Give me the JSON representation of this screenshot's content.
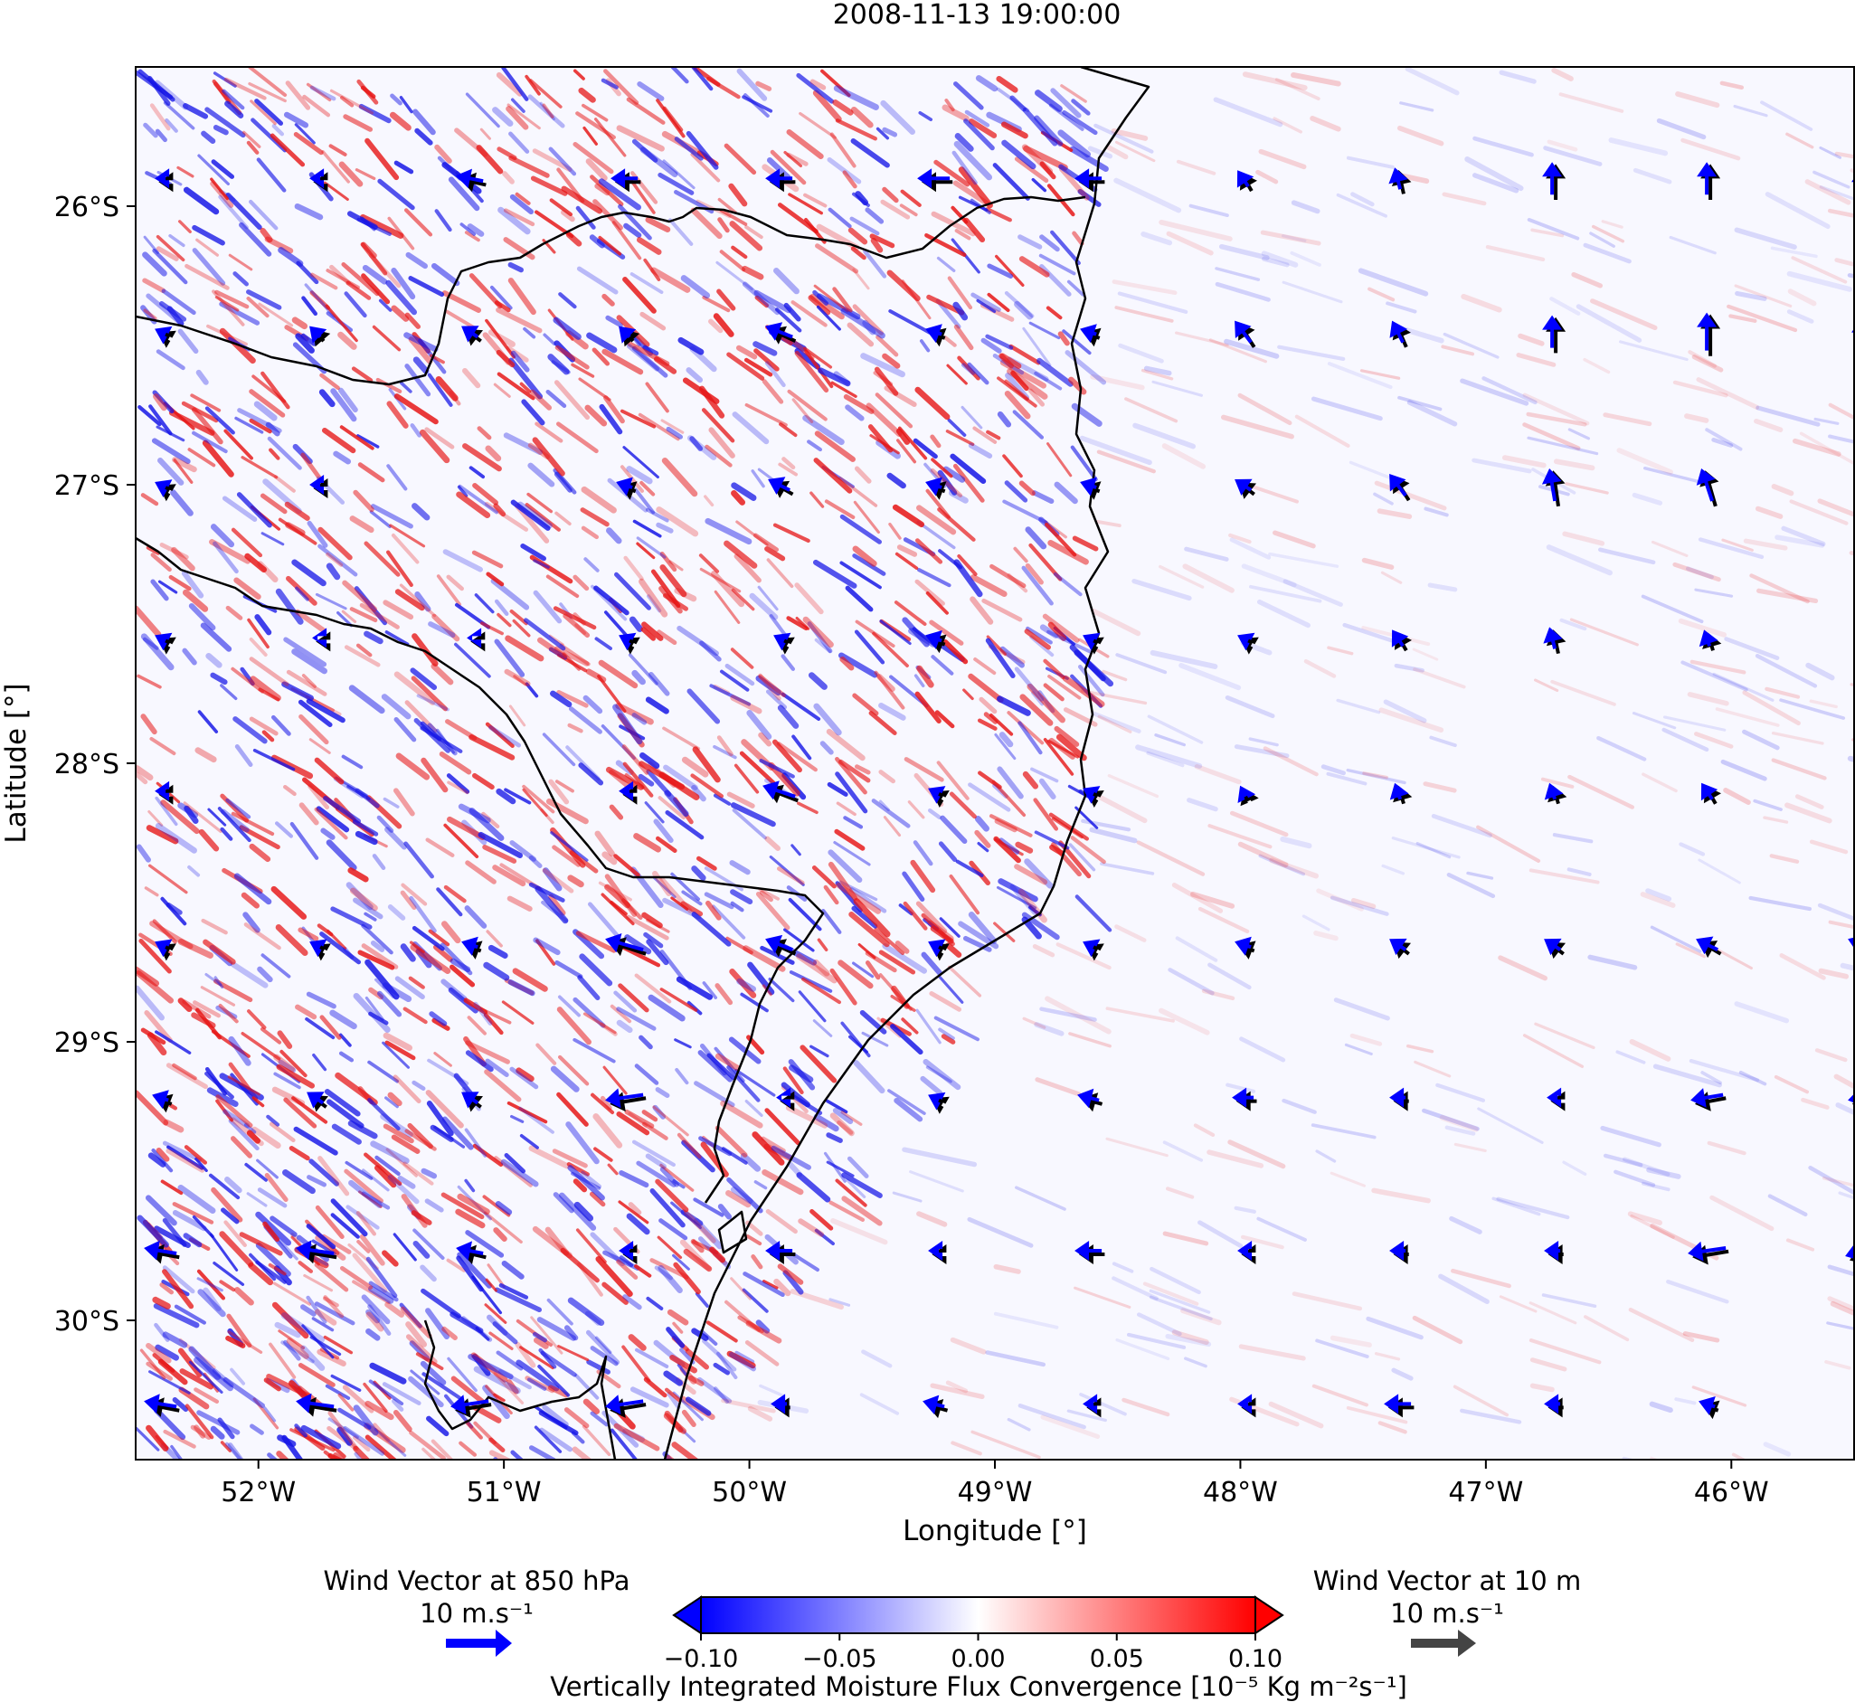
{
  "chart_data": {
    "type": "heatmap",
    "title": "2008-11-13 19:00:00",
    "xlabel": "Longitude [°]",
    "ylabel": "Latitude [°]",
    "xlim": [
      -52.5,
      -45.5
    ],
    "ylim": [
      -30.5,
      -25.5
    ],
    "x_ticks": [
      {
        "value": -52,
        "label": "52°W"
      },
      {
        "value": -51,
        "label": "51°W"
      },
      {
        "value": -50,
        "label": "50°W"
      },
      {
        "value": -49,
        "label": "49°W"
      },
      {
        "value": -48,
        "label": "48°W"
      },
      {
        "value": -47,
        "label": "47°W"
      },
      {
        "value": -46,
        "label": "46°W"
      }
    ],
    "y_ticks": [
      {
        "value": -26,
        "label": "26°S"
      },
      {
        "value": -27,
        "label": "27°S"
      },
      {
        "value": -28,
        "label": "28°S"
      },
      {
        "value": -29,
        "label": "29°S"
      },
      {
        "value": -30,
        "label": "30°S"
      }
    ],
    "colorbar": {
      "label": "Vertically Integrated Moisture Flux Convergence [10⁻⁵ Kg m⁻²s⁻¹]",
      "range": [
        -0.1,
        0.1
      ],
      "ticks": [
        {
          "value": -0.1,
          "label": "−0.10"
        },
        {
          "value": -0.05,
          "label": "−0.05"
        },
        {
          "value": 0.0,
          "label": "0.00"
        },
        {
          "value": 0.05,
          "label": "0.05"
        },
        {
          "value": 0.1,
          "label": "0.10"
        }
      ],
      "low_color": "#0000ff",
      "mid_color": "#ffffff",
      "high_color": "#ff0000"
    },
    "field_summary": "noisy small-scale convergence over land (strong red/blue bands in southwest), weak near-zero over ocean with faint bands in northeast",
    "quiver_legend": [
      {
        "title": "Wind Vector at 850 hPa",
        "scale_label": "10 m.s⁻¹",
        "color": "#0000ff"
      },
      {
        "title": "Wind Vector at 10 m",
        "scale_label": "10 m.s⁻¹",
        "color": "#444444"
      }
    ],
    "wind_grid": {
      "lons": [
        -52.4,
        -51.77,
        -51.14,
        -50.51,
        -49.88,
        -49.25,
        -48.62,
        -47.99,
        -47.36,
        -46.73,
        -46.1,
        -45.47
      ],
      "lats": [
        -25.9,
        -26.45,
        -27.0,
        -27.55,
        -28.1,
        -28.65,
        -29.2,
        -29.75,
        -30.3
      ],
      "u850": [
        [
          -2,
          -2,
          -5,
          -5,
          -5,
          -6,
          -5,
          -2,
          -1,
          0,
          0,
          0
        ],
        [
          -2,
          -2,
          -3,
          -2,
          -5,
          -3,
          -3,
          -3,
          -2,
          0,
          0,
          0
        ],
        [
          -2,
          -2,
          0,
          -3,
          -4,
          -3,
          -3,
          -3,
          -3,
          -1,
          -2,
          -1
        ],
        [
          -2,
          -1,
          -1,
          -2,
          -2,
          -3,
          -2,
          -2,
          -2,
          -1,
          -1,
          -1
        ],
        [
          -2,
          0,
          0,
          -2,
          -6,
          -2,
          -2,
          -1,
          -1,
          -1,
          -2,
          -2
        ],
        [
          -2,
          -2,
          -3,
          -7,
          -5,
          -2,
          -2,
          -3,
          -3,
          -3,
          -4,
          -5
        ],
        [
          -3,
          -3,
          -3,
          -7,
          -1,
          -2,
          -4,
          -4,
          -3,
          -2,
          -6,
          -5
        ],
        [
          -6,
          -7,
          -5,
          -2,
          -5,
          -2,
          -5,
          -2,
          -3,
          -3,
          -7,
          -6
        ],
        [
          -6,
          -7,
          -7,
          -7,
          -3,
          -4,
          -2,
          -2,
          -5,
          -3,
          -3,
          -3
        ]
      ],
      "v850": [
        [
          0,
          0,
          1,
          0,
          0,
          0,
          0,
          3,
          4,
          6,
          6,
          4
        ],
        [
          1,
          2,
          2,
          2,
          2,
          1,
          1,
          4,
          4,
          6,
          7,
          5
        ],
        [
          1,
          0,
          0,
          1,
          2,
          1,
          1,
          2,
          4,
          6,
          6,
          3
        ],
        [
          1,
          0,
          0,
          1,
          1,
          1,
          1,
          1,
          3,
          4,
          3,
          2
        ],
        [
          0,
          0,
          0,
          0,
          2,
          1,
          1,
          2,
          3,
          3,
          3,
          2
        ],
        [
          1,
          1,
          1,
          2,
          2,
          1,
          1,
          1,
          2,
          2,
          2,
          2
        ],
        [
          1,
          2,
          2,
          -1,
          0,
          1,
          1,
          0,
          0,
          0,
          -1,
          -1
        ],
        [
          1,
          1,
          1,
          0,
          0,
          0,
          0,
          0,
          0,
          0,
          -1,
          -2
        ],
        [
          1,
          1,
          -1,
          -1,
          0,
          1,
          0,
          0,
          0,
          0,
          1,
          0
        ]
      ]
    }
  }
}
